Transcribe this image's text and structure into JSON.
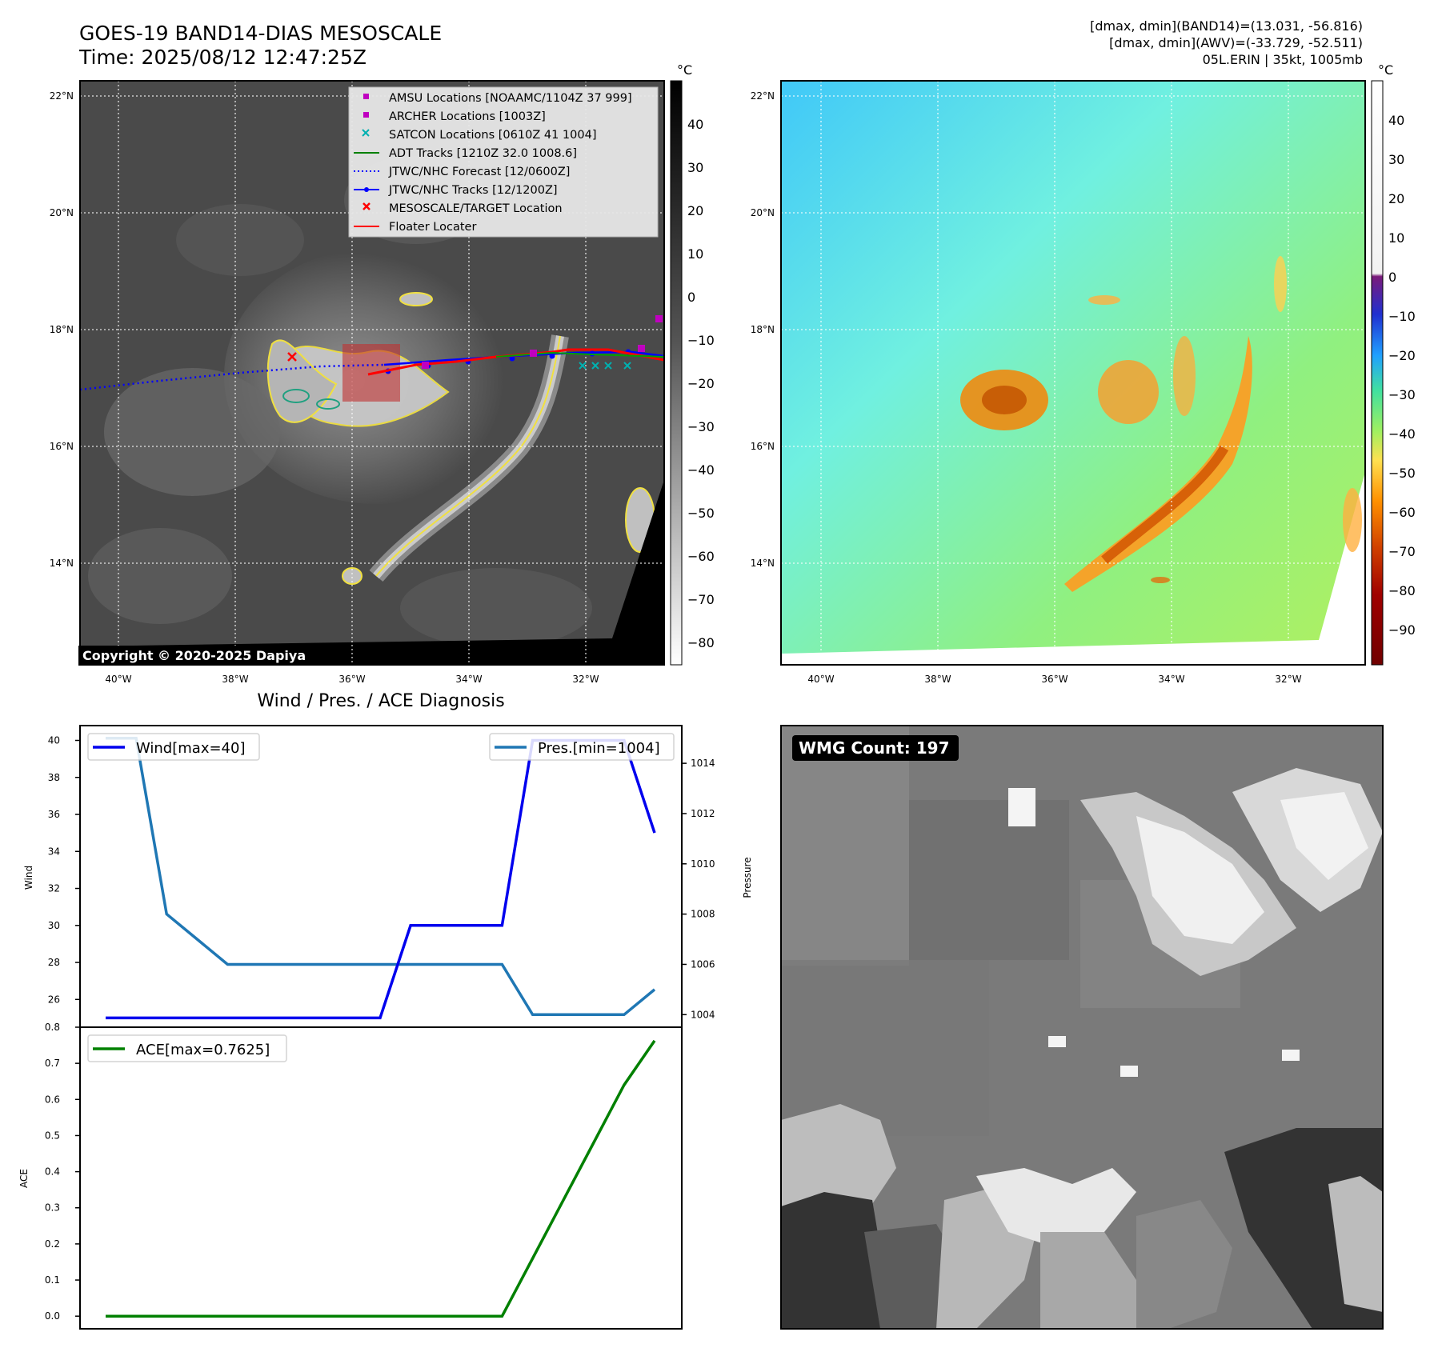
{
  "header": {
    "title": "GOES-19 BAND14-DIAS MESOSCALE",
    "time": "Time: 2025/08/12 12:47:25Z",
    "info": [
      "[dmax, dmin](BAND14)=(13.031, -56.816)",
      "[dmax, dmin](AWV)=(-33.729, -52.511)",
      "05L.ERIN | 35kt, 1005mb"
    ]
  },
  "map_ir": {
    "lat_ticks": [
      "22°N",
      "20°N",
      "18°N",
      "16°N",
      "14°N"
    ],
    "lon_ticks": [
      "40°W",
      "38°W",
      "36°W",
      "34°W",
      "32°W"
    ],
    "copyright": "Copyright © 2020-2025 Dapiya",
    "legend": [
      {
        "label": "AMSU Locations [NOAAMC/1104Z 37 999]",
        "color": "#c000c0",
        "marker": "square"
      },
      {
        "label": "ARCHER Locations [1003Z]",
        "color": "#c000c0",
        "marker": "square"
      },
      {
        "label": "SATCON Locations [0610Z 41 1004]",
        "color": "#00b0b0",
        "marker": "x"
      },
      {
        "label": "ADT Tracks [1210Z 32.0 1008.6]",
        "color": "#008000",
        "marker": "line"
      },
      {
        "label": "JTWC/NHC Forecast [12/0600Z]",
        "color": "#0000ff",
        "marker": "dotted"
      },
      {
        "label": "JTWC/NHC Tracks [12/1200Z]",
        "color": "#0000ff",
        "marker": "line-dot"
      },
      {
        "label": "MESOSCALE/TARGET Location",
        "color": "#ff0000",
        "marker": "x"
      },
      {
        "label": "Floater Locater",
        "color": "#ff0000",
        "marker": "line"
      }
    ],
    "colorbar": {
      "unit": "°C",
      "ticks": [
        "40",
        "30",
        "20",
        "10",
        "0",
        "−10",
        "−20",
        "−30",
        "−40",
        "−50",
        "−60",
        "−70",
        "−80"
      ]
    }
  },
  "map_wv": {
    "lat_ticks": [
      "22°N",
      "20°N",
      "18°N",
      "16°N",
      "14°N"
    ],
    "lon_ticks": [
      "40°W",
      "38°W",
      "36°W",
      "34°W",
      "32°W"
    ],
    "colorbar": {
      "unit": "°C",
      "ticks": [
        "40",
        "30",
        "20",
        "10",
        "0",
        "−10",
        "−20",
        "−30",
        "−40",
        "−50",
        "−60",
        "−70",
        "−80",
        "−90"
      ]
    }
  },
  "diagnosis": {
    "title": "Wind / Pres. / ACE Diagnosis",
    "wind_label": "Wind",
    "pressure_label": "Pressure",
    "ace_label": "ACE",
    "legend_wind": "Wind[max=40]",
    "legend_pres": "Pres.[min=1004]",
    "legend_ace": "ACE[max=0.7625]",
    "colors": {
      "wind": "#0000ee",
      "pressure": "#1f77b4",
      "ace": "#008000"
    }
  },
  "chart_data": [
    {
      "type": "line",
      "x": [
        0,
        1,
        2,
        3,
        4,
        5,
        6,
        7,
        8,
        9,
        10,
        11,
        12,
        13,
        14,
        15,
        16,
        17,
        18
      ],
      "series": [
        {
          "name": "Wind[max=40]",
          "values": [
            25,
            25,
            25,
            25,
            25,
            25,
            25,
            25,
            25,
            25,
            30,
            30,
            30,
            30,
            40,
            40,
            40,
            40,
            35
          ]
        },
        {
          "name": "Pres.[min=1004]",
          "axis": "right",
          "values": [
            1015,
            1015,
            1008,
            1007,
            1006,
            1006,
            1006,
            1006,
            1006,
            1006,
            1006,
            1006,
            1006,
            1006,
            1004,
            1004,
            1004,
            1004,
            1005
          ]
        }
      ],
      "ylabel": "Wind",
      "ylim": [
        24.5,
        40.8
      ],
      "yticks": [
        26,
        28,
        30,
        32,
        34,
        36,
        38,
        40
      ],
      "y2label": "Pressure",
      "y2lim": [
        1003.5,
        1015.5
      ],
      "y2ticks": [
        1004,
        1006,
        1008,
        1010,
        1012,
        1014
      ]
    },
    {
      "type": "line",
      "x": [
        0,
        1,
        2,
        3,
        4,
        5,
        6,
        7,
        8,
        9,
        10,
        11,
        12,
        13,
        14,
        15,
        16,
        17,
        18
      ],
      "series": [
        {
          "name": "ACE[max=0.7625]",
          "values": [
            0,
            0,
            0,
            0,
            0,
            0,
            0,
            0,
            0,
            0,
            0,
            0,
            0,
            0,
            0.16,
            0.32,
            0.48,
            0.64,
            0.7625
          ]
        }
      ],
      "ylabel": "ACE",
      "ylim": [
        -0.035,
        0.8
      ],
      "yticks": [
        0.0,
        0.1,
        0.2,
        0.3,
        0.4,
        0.5,
        0.6,
        0.7,
        0.8
      ]
    }
  ],
  "wmg": {
    "label": "WMG Count: 197"
  }
}
